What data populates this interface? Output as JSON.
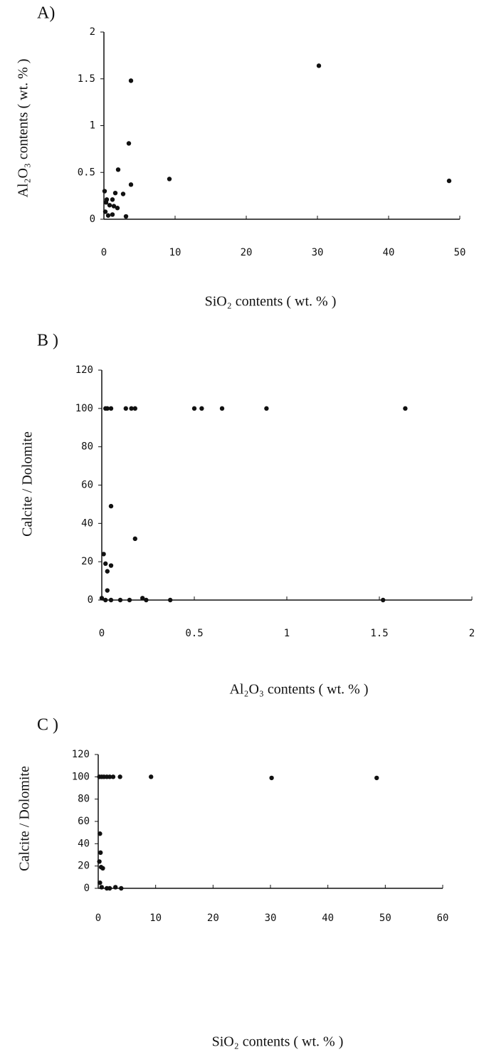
{
  "chart_data": [
    {
      "type": "scatter",
      "panel_label": "A)",
      "xlabel": "SiO₂ contents ( wt. % )",
      "ylabel": "Al₂O₃ contents ( wt. % )",
      "color": "#111111",
      "x": [
        3.8,
        3.5,
        2.0,
        3.8,
        9.2,
        30.2,
        48.5,
        1.2,
        0.1,
        0.4,
        0.8,
        1.4,
        1.9,
        2.7,
        3.1,
        0.2,
        0.6,
        1.2,
        0.3,
        1.6
      ],
      "values": [
        1.48,
        0.81,
        0.53,
        0.37,
        0.43,
        1.64,
        0.41,
        0.21,
        0.3,
        0.21,
        0.15,
        0.14,
        0.12,
        0.27,
        0.03,
        0.08,
        0.04,
        0.05,
        0.18,
        0.28
      ],
      "xlim": [
        0,
        50
      ],
      "ylim": [
        0,
        2
      ],
      "xticks": [
        0,
        10,
        20,
        30,
        40,
        50
      ],
      "yticks": [
        0,
        0.5,
        1,
        1.5,
        2
      ]
    },
    {
      "type": "scatter",
      "panel_label": "B )",
      "xlabel": "Al₂O₃ contents ( wt. % )",
      "ylabel": "Calcite / Dolomite",
      "color": "#111111",
      "x": [
        0.02,
        0.03,
        0.05,
        0.13,
        0.16,
        0.18,
        0.5,
        0.54,
        0.65,
        0.89,
        1.64,
        0.05,
        0.18,
        0.01,
        0.02,
        0.05,
        0.03,
        0.03,
        0.0,
        0.02,
        0.05,
        0.1,
        0.15,
        0.22,
        0.24,
        0.37,
        1.52
      ],
      "values": [
        100,
        100,
        100,
        100,
        100,
        100,
        100,
        100,
        100,
        100,
        100,
        49,
        32,
        24,
        19,
        18,
        15,
        5,
        1,
        0,
        0,
        0,
        0,
        1,
        0,
        0,
        0
      ],
      "xlim": [
        0,
        2
      ],
      "ylim": [
        0,
        120
      ],
      "xticks": [
        0,
        0.5,
        1,
        1.5,
        2
      ],
      "yticks": [
        0,
        20,
        40,
        60,
        80,
        100,
        120
      ]
    },
    {
      "type": "scatter",
      "panel_label": "C )",
      "xlabel": "SiO₂ contents ( wt. % )",
      "ylabel": "Calcite / Dolomite",
      "color": "#111111",
      "x": [
        0.2,
        0.6,
        1.0,
        1.5,
        2.0,
        2.6,
        3.8,
        9.2,
        30.2,
        48.5,
        0.3,
        0.4,
        0.2,
        0.5,
        0.8,
        0.3,
        0.6,
        1.5,
        3.0,
        4.0,
        2.0
      ],
      "values": [
        100,
        100,
        100,
        100,
        100,
        100,
        100,
        100,
        99,
        99,
        49,
        32,
        24,
        19,
        18,
        5,
        1,
        0,
        1,
        0,
        0
      ],
      "xlim": [
        0,
        60
      ],
      "ylim": [
        0,
        120
      ],
      "xticks": [
        0,
        10,
        20,
        30,
        40,
        50,
        60
      ],
      "yticks": [
        0,
        20,
        40,
        60,
        80,
        100,
        120
      ]
    }
  ]
}
